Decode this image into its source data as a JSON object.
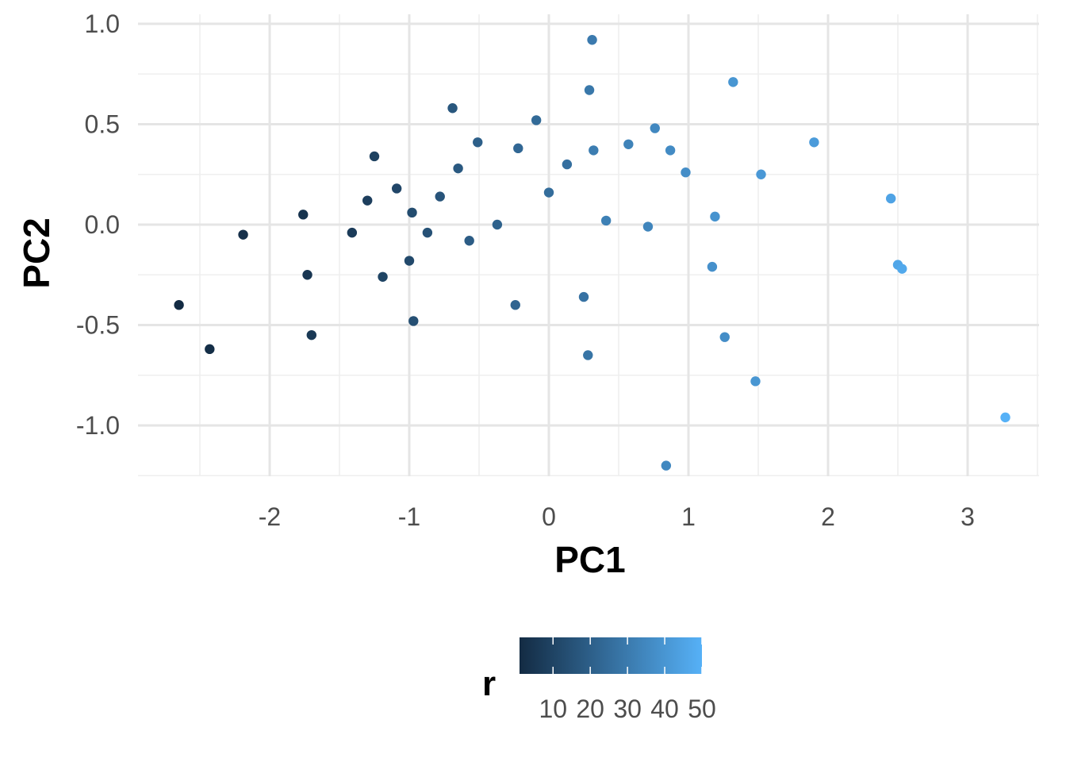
{
  "chart_data": {
    "type": "scatter",
    "xlabel": "PC1",
    "ylabel": "PC2",
    "xlim": [
      -2.75,
      3.5
    ],
    "ylim": [
      -1.25,
      1.02
    ],
    "x_ticks": [
      -2,
      -1,
      0,
      1,
      2,
      3
    ],
    "x_tick_labels": [
      "-2",
      "-1",
      "0",
      "1",
      "2",
      "3"
    ],
    "y_ticks": [
      -1.0,
      -0.5,
      0.0,
      0.5,
      1.0
    ],
    "y_tick_labels": [
      "-1.0",
      "-0.5",
      "0.0",
      "0.5",
      "1.0"
    ],
    "grid": true,
    "color_scale": {
      "variable": "r",
      "title": "r",
      "low_color": "#132B43",
      "high_color": "#56B1F7",
      "range": [
        1,
        50
      ],
      "breaks": [
        10,
        20,
        30,
        40,
        50
      ],
      "break_labels": [
        "10",
        "20",
        "30",
        "40",
        "50"
      ],
      "legend_position": "bottom"
    },
    "points": [
      {
        "x": -2.65,
        "y": -0.4,
        "r": 1
      },
      {
        "x": -2.43,
        "y": -0.62,
        "r": 2
      },
      {
        "x": -2.19,
        "y": -0.05,
        "r": 3
      },
      {
        "x": -1.76,
        "y": 0.05,
        "r": 4
      },
      {
        "x": -1.73,
        "y": -0.25,
        "r": 5
      },
      {
        "x": -1.7,
        "y": -0.55,
        "r": 6
      },
      {
        "x": -1.41,
        "y": -0.04,
        "r": 7
      },
      {
        "x": -1.3,
        "y": 0.12,
        "r": 8
      },
      {
        "x": -1.25,
        "y": 0.34,
        "r": 9
      },
      {
        "x": -1.19,
        "y": -0.26,
        "r": 10
      },
      {
        "x": -1.09,
        "y": 0.18,
        "r": 11
      },
      {
        "x": -1.0,
        "y": -0.18,
        "r": 12
      },
      {
        "x": -0.98,
        "y": 0.06,
        "r": 13
      },
      {
        "x": -0.97,
        "y": -0.48,
        "r": 14
      },
      {
        "x": -0.87,
        "y": -0.04,
        "r": 15
      },
      {
        "x": -0.78,
        "y": 0.14,
        "r": 16
      },
      {
        "x": -0.69,
        "y": 0.58,
        "r": 17
      },
      {
        "x": -0.65,
        "y": 0.28,
        "r": 18
      },
      {
        "x": -0.57,
        "y": -0.08,
        "r": 19
      },
      {
        "x": -0.51,
        "y": 0.41,
        "r": 20
      },
      {
        "x": -0.37,
        "y": 0.0,
        "r": 21
      },
      {
        "x": -0.24,
        "y": -0.4,
        "r": 22
      },
      {
        "x": -0.22,
        "y": 0.38,
        "r": 23
      },
      {
        "x": -0.09,
        "y": 0.52,
        "r": 24
      },
      {
        "x": 0.0,
        "y": 0.16,
        "r": 25
      },
      {
        "x": 0.13,
        "y": 0.3,
        "r": 26
      },
      {
        "x": 0.25,
        "y": -0.36,
        "r": 27
      },
      {
        "x": 0.28,
        "y": -0.65,
        "r": 28
      },
      {
        "x": 0.29,
        "y": 0.67,
        "r": 29
      },
      {
        "x": 0.31,
        "y": 0.92,
        "r": 30
      },
      {
        "x": 0.32,
        "y": 0.37,
        "r": 31
      },
      {
        "x": 0.41,
        "y": 0.02,
        "r": 32
      },
      {
        "x": 0.57,
        "y": 0.4,
        "r": 33
      },
      {
        "x": 0.71,
        "y": -0.01,
        "r": 34
      },
      {
        "x": 0.76,
        "y": 0.48,
        "r": 35
      },
      {
        "x": 0.84,
        "y": -1.2,
        "r": 35
      },
      {
        "x": 0.87,
        "y": 0.37,
        "r": 36
      },
      {
        "x": 0.98,
        "y": 0.26,
        "r": 37
      },
      {
        "x": 1.17,
        "y": -0.21,
        "r": 38
      },
      {
        "x": 1.19,
        "y": 0.04,
        "r": 39
      },
      {
        "x": 1.26,
        "y": -0.56,
        "r": 37
      },
      {
        "x": 1.32,
        "y": 0.71,
        "r": 40
      },
      {
        "x": 1.48,
        "y": -0.78,
        "r": 40
      },
      {
        "x": 1.52,
        "y": 0.25,
        "r": 41
      },
      {
        "x": 1.9,
        "y": 0.41,
        "r": 42
      },
      {
        "x": 2.45,
        "y": 0.13,
        "r": 45
      },
      {
        "x": 2.5,
        "y": -0.2,
        "r": 46
      },
      {
        "x": 2.53,
        "y": -0.22,
        "r": 47
      },
      {
        "x": 3.27,
        "y": -0.96,
        "r": 50
      }
    ]
  }
}
